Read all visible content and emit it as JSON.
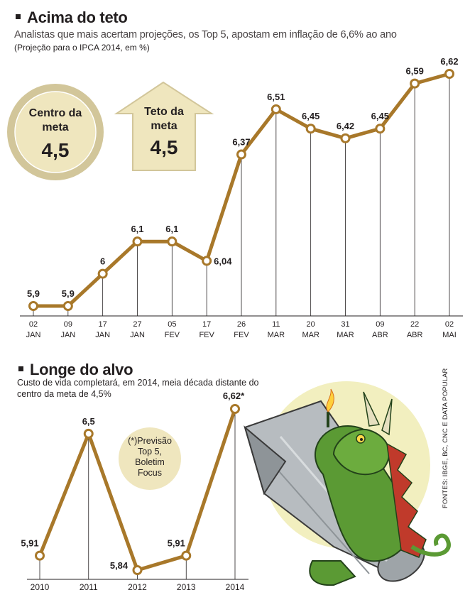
{
  "header": {
    "title": "Acima do teto",
    "subtitle": "Analistas que mais acertam projeções, os Top 5, apostam em inflação de 6,6% ao ano",
    "note": "(Projeção para o IPCA 2014, em %)"
  },
  "badges": {
    "center": {
      "line1": "Centro da",
      "line2": "meta",
      "value": "4,5"
    },
    "ceiling": {
      "line1": "Teto da",
      "line2": "meta",
      "value": "4,5"
    }
  },
  "section2": {
    "title": "Longe do alvo",
    "subtitle": "Custo de vida completará, em 2014, meia década distante do centro da meta de 4,5%"
  },
  "footnote": {
    "line1": "(*)Previsão",
    "line2": "Top 5,",
    "line3": "Boletim",
    "line4": "Focus"
  },
  "sources": "FONTES: IBGE, BC, CNC E DATA POPULAR",
  "colors": {
    "line": "#a8782a",
    "marker_fill": "#ffffff",
    "badge_fill": "#efe6be",
    "badge_ring": "#d2c69a",
    "dragon_glow": "#f2efbf",
    "dragon_green": "#5b9a34",
    "rocket": "#b7bcc0"
  },
  "chart_data": [
    {
      "type": "line",
      "categories": [
        "02 JAN",
        "09 JAN",
        "17 JAN",
        "27 JAN",
        "05 FEV",
        "17 FEV",
        "26 FEV",
        "11 MAR",
        "20 MAR",
        "31 MAR",
        "09 ABR",
        "22 ABR",
        "02 MAI"
      ],
      "category_lines": [
        [
          "02",
          "JAN"
        ],
        [
          "09",
          "JAN"
        ],
        [
          "17",
          "JAN"
        ],
        [
          "27",
          "JAN"
        ],
        [
          "05",
          "FEV"
        ],
        [
          "17",
          "FEV"
        ],
        [
          "26",
          "FEV"
        ],
        [
          "11",
          "MAR"
        ],
        [
          "20",
          "MAR"
        ],
        [
          "31",
          "MAR"
        ],
        [
          "09",
          "ABR"
        ],
        [
          "22",
          "ABR"
        ],
        [
          "02",
          "MAI"
        ]
      ],
      "values": [
        5.9,
        5.9,
        6.0,
        6.1,
        6.1,
        6.04,
        6.37,
        6.51,
        6.45,
        6.42,
        6.45,
        6.59,
        6.62
      ],
      "labels": [
        "5,9",
        "5,9",
        "6",
        "6,1",
        "6,1",
        "6,04",
        "6,37",
        "6,51",
        "6,45",
        "6,42",
        "6,45",
        "6,59",
        "6,62"
      ],
      "title": "Acima do teto",
      "ylim": [
        5.9,
        6.62
      ],
      "grid": "vertical drop lines"
    },
    {
      "type": "line",
      "categories": [
        "2010",
        "2011",
        "2012",
        "2013",
        "2014"
      ],
      "values": [
        5.91,
        6.5,
        5.84,
        5.91,
        6.62
      ],
      "labels": [
        "5,91",
        "6,5",
        "5,84",
        "5,91",
        "6,62*"
      ],
      "title": "Longe do alvo",
      "ylim": [
        5.84,
        6.62
      ],
      "grid": "vertical drop lines"
    }
  ]
}
